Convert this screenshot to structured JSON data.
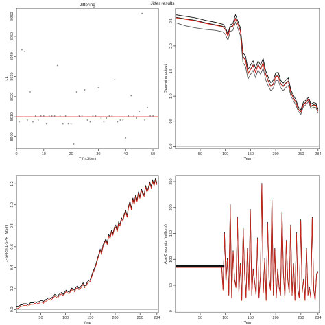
{
  "figure_title": "Jitter results",
  "chart_data": [
    {
      "type": "scatter",
      "title": "Jittering",
      "xlabel": "T (n.Jitter)",
      "ylabel": "LL",
      "xlim": [
        0,
        52
      ],
      "ylim": [
        8894,
        8964
      ],
      "x_ticks": [
        0,
        10,
        20,
        30,
        40,
        50
      ],
      "y_ticks": [
        8900,
        8910,
        8920,
        8930,
        8940,
        8950,
        8960
      ],
      "reference_line": 8910,
      "points": {
        "x": [
          1,
          2,
          3,
          4,
          5,
          6,
          7,
          8,
          9,
          10,
          11,
          12,
          13,
          14,
          15,
          16,
          17,
          18,
          19,
          20,
          21,
          22,
          23,
          24,
          25,
          26,
          27,
          28,
          29,
          30,
          31,
          32,
          33,
          34,
          35,
          36,
          37,
          38,
          39,
          40,
          41,
          42,
          43,
          44,
          45,
          46,
          47,
          48,
          49,
          50
        ],
        "y": [
          8907,
          8943,
          8942,
          8908,
          8922,
          8907,
          8910,
          8908,
          8910,
          8910,
          8906,
          8910,
          8910,
          8910,
          8935,
          8910,
          8906,
          8910,
          8906,
          8906,
          8896,
          8922,
          8910,
          8910,
          8923,
          8908,
          8907,
          8910,
          8910,
          8924,
          8909,
          8907,
          8909,
          8910,
          8910,
          8928,
          8907,
          8908,
          8908,
          8899,
          8910,
          8920,
          8910,
          8909,
          8912,
          8961,
          8908,
          8914,
          8910,
          8910
        ]
      }
    },
    {
      "type": "line",
      "title": "",
      "xlabel": "Year",
      "ylabel": "Spawning output",
      "xlim": [
        1,
        287
      ],
      "ylim": [
        -0.05,
        2.75
      ],
      "x_ticks": [
        50,
        100,
        150,
        200,
        250,
        284
      ],
      "y_ticks": [
        0.0,
        0.5,
        1.0,
        1.5,
        2.0,
        2.5
      ],
      "series_x": [
        1,
        20,
        40,
        60,
        80,
        95,
        100,
        105,
        110,
        115,
        120,
        125,
        130,
        135,
        140,
        145,
        150,
        155,
        160,
        165,
        170,
        175,
        180,
        185,
        190,
        195,
        200,
        205,
        210,
        215,
        220,
        225,
        230,
        235,
        240,
        245,
        250,
        255,
        260,
        265,
        270,
        275,
        280,
        284
      ],
      "series": [
        {
          "values": [
            2.57,
            2.54,
            2.51,
            2.46,
            2.42,
            2.39,
            2.33,
            2.2,
            2.38,
            2.4,
            2.55,
            2.44,
            2.3,
            1.79,
            1.72,
            1.45,
            1.54,
            1.62,
            1.48,
            1.63,
            1.54,
            1.67,
            1.44,
            1.31,
            1.2,
            1.24,
            1.4,
            1.4,
            1.25,
            1.2,
            1.26,
            1.3,
            1.08,
            0.97,
            0.88,
            0.74,
            0.69,
            0.84,
            0.88,
            0.94,
            0.8,
            0.83,
            0.82,
            0.71
          ]
        },
        {
          "values": [
            2.62,
            2.59,
            2.56,
            2.51,
            2.47,
            2.43,
            2.37,
            2.24,
            2.42,
            2.45,
            2.62,
            2.49,
            2.36,
            1.86,
            1.8,
            1.53,
            1.62,
            1.7,
            1.56,
            1.7,
            1.62,
            1.75,
            1.51,
            1.38,
            1.27,
            1.31,
            1.46,
            1.47,
            1.31,
            1.26,
            1.32,
            1.36,
            1.13,
            1.02,
            0.93,
            0.78,
            0.73,
            0.88,
            0.92,
            0.98,
            0.84,
            0.87,
            0.86,
            0.74
          ]
        },
        {
          "values": [
            2.56,
            2.53,
            2.5,
            2.45,
            2.41,
            2.38,
            2.32,
            2.19,
            2.37,
            2.39,
            2.54,
            2.43,
            2.29,
            1.78,
            1.71,
            1.44,
            1.53,
            1.61,
            1.47,
            1.62,
            1.53,
            1.66,
            1.43,
            1.3,
            1.19,
            1.23,
            1.39,
            1.39,
            1.24,
            1.19,
            1.25,
            1.29,
            1.07,
            0.96,
            0.87,
            0.73,
            0.68,
            0.83,
            0.87,
            0.93,
            0.79,
            0.82,
            0.81,
            0.7
          ]
        },
        {
          "values": [
            2.46,
            2.4,
            2.36,
            2.33,
            2.31,
            2.28,
            2.23,
            2.11,
            2.29,
            2.31,
            2.47,
            2.35,
            2.2,
            1.66,
            1.59,
            1.34,
            1.43,
            1.51,
            1.37,
            1.52,
            1.43,
            1.56,
            1.33,
            1.21,
            1.11,
            1.15,
            1.31,
            1.31,
            1.16,
            1.11,
            1.17,
            1.21,
            1.01,
            0.91,
            0.82,
            0.69,
            0.64,
            0.79,
            0.83,
            0.89,
            0.75,
            0.78,
            0.77,
            0.66
          ]
        }
      ]
    },
    {
      "type": "line",
      "title": "",
      "xlabel": "Year",
      "ylabel": "(1-SPR)/(1-SPR_MSY)",
      "xlim": [
        1,
        287
      ],
      "ylim": [
        -0.03,
        1.28
      ],
      "x_ticks": [
        50,
        100,
        150,
        200,
        250,
        284
      ],
      "y_ticks": [
        0.0,
        0.2,
        0.4,
        0.6,
        0.8,
        1.0,
        1.2
      ],
      "series": [
        {
          "values": [
            0.01,
            0.01,
            0.02,
            0.03,
            0.03,
            0.04,
            0.04,
            0.04,
            0.03,
            0.04,
            0.05,
            0.05,
            0.05,
            0.06,
            0.05,
            0.06,
            0.06,
            0.07,
            0.07,
            0.06,
            0.08,
            0.08,
            0.09,
            0.1,
            0.09,
            0.1,
            0.11,
            0.13,
            0.12,
            0.11,
            0.13,
            0.14,
            0.15,
            0.13,
            0.15,
            0.17,
            0.16,
            0.15,
            0.17,
            0.19,
            0.18,
            0.17,
            0.2,
            0.21,
            0.19,
            0.2,
            0.22,
            0.24,
            0.21,
            0.22,
            0.25,
            0.26,
            0.27,
            0.31,
            0.35,
            0.38,
            0.42,
            0.47,
            0.51,
            0.56,
            0.53,
            0.6,
            0.63,
            0.66,
            0.62,
            0.7,
            0.68,
            0.74,
            0.71,
            0.77,
            0.79,
            0.74,
            0.82,
            0.8,
            0.86,
            0.84,
            0.9,
            0.93,
            0.88,
            0.97,
            1.02,
            0.95,
            1.05,
            1.0,
            1.08,
            1.03,
            1.11,
            1.06,
            1.14,
            1.1,
            1.08,
            1.17,
            1.12,
            1.15,
            1.2,
            1.16,
            1.22,
            1.18,
            1.24,
            1.19
          ]
        }
      ]
    },
    {
      "type": "line",
      "title": "",
      "xlabel": "Year",
      "ylabel": "Age-0 recruits (millions)",
      "xlim": [
        1,
        287
      ],
      "ylim": [
        -3,
        262
      ],
      "x_ticks": [
        50,
        100,
        150,
        200,
        250,
        284
      ],
      "y_ticks": [
        0,
        50,
        100,
        150,
        200,
        250
      ],
      "baseline_level": 87,
      "baseline_end_year": 98,
      "series": [
        {
          "values": [
            87,
            87,
            87,
            87,
            87,
            87,
            87,
            87,
            87,
            87,
            87,
            87,
            87,
            87,
            87,
            87,
            87,
            87,
            87,
            87,
            87,
            87,
            87,
            87,
            87,
            87,
            87,
            87,
            87,
            87,
            87,
            87,
            87,
            40,
            150,
            55,
            100,
            30,
            205,
            25,
            115,
            60,
            45,
            180,
            35,
            90,
            20,
            160,
            70,
            25,
            120,
            40,
            195,
            30,
            80,
            55,
            30,
            140,
            25,
            65,
            245,
            35,
            100,
            20,
            170,
            60,
            40,
            215,
            30,
            120,
            25,
            80,
            45,
            30,
            190,
            70,
            25,
            135,
            60,
            35,
            165,
            30,
            90,
            20,
            150,
            40,
            25,
            175,
            35,
            60,
            20,
            120,
            30,
            45,
            25,
            180,
            40,
            20,
            70,
            75
          ]
        }
      ]
    }
  ]
}
